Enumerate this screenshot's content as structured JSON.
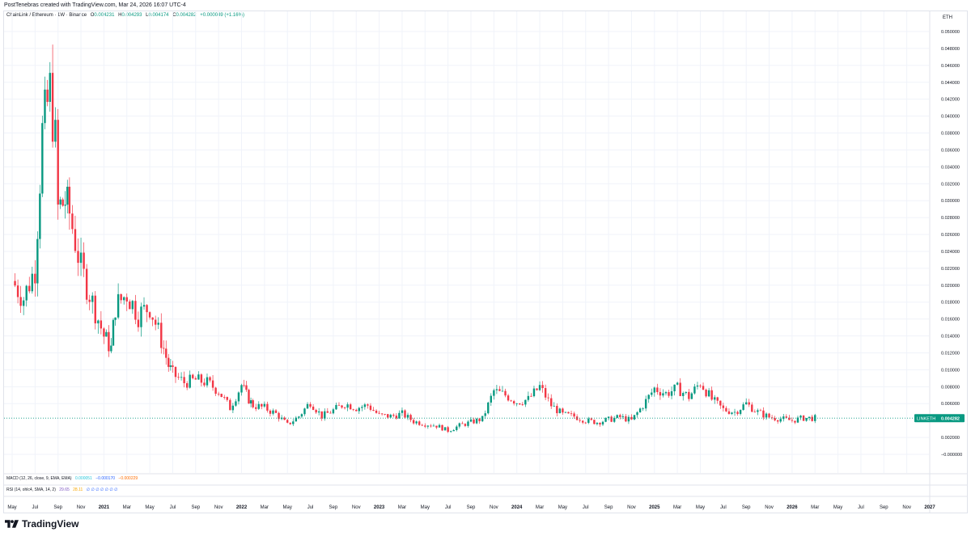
{
  "header": {
    "credit": "PostTenebras created with TradingView.com, Mar 24, 2026 16:07 UTC-4"
  },
  "legend": {
    "symbol": "ChainLink / Ethereum · 1W · Binance",
    "o_label": "O",
    "o": "0.004231",
    "h_label": "H",
    "h": "0.004293",
    "l_label": "L",
    "l": "0.004174",
    "c_label": "C",
    "c": "0.004282",
    "change": "+0.000049 (+1.16%)"
  },
  "price_scale": {
    "unit": "ETH",
    "last_price_tag_label": "LINKETH",
    "last_price_tag_value": "0.004282"
  },
  "macd": {
    "label": "MACD (12, 26, close, 9, EMA, EMA)",
    "v1": "0.000051",
    "v2": "−0.000170",
    "v3": "−0.000229",
    "colors": [
      "#26c6da",
      "#2962ff",
      "#ff6d00"
    ]
  },
  "rsi": {
    "label": "RSI (14, ohlc4, SMA, 14, 2)",
    "v1": "29.65",
    "v2": "28.11",
    "v3": "∅ ∅ ∅ ∅ ∅ ∅ ∅",
    "colors": [
      "#7e57c2",
      "#f7a600",
      "#2962ff"
    ]
  },
  "branding": {
    "name": "TradingView",
    "icon": "tradingview-logo-icon"
  },
  "colors": {
    "up": "#089981",
    "down": "#f23645",
    "last_price": "#089981",
    "grid": "#f0f3fa"
  },
  "chart_data": {
    "type": "candlestick",
    "title": "ChainLink / Ethereum · 1W · Binance",
    "ylabel": "ETH",
    "ylim": [
      -0.004,
      0.052
    ],
    "y_ticks": [
      "0.050000",
      "0.048000",
      "0.046000",
      "0.044000",
      "0.042000",
      "0.040000",
      "0.038000",
      "0.036000",
      "0.034000",
      "0.032000",
      "0.030000",
      "0.028000",
      "0.026000",
      "0.024000",
      "0.022000",
      "0.020000",
      "0.018000",
      "0.016000",
      "0.014000",
      "0.012000",
      "0.010000",
      "0.008000",
      "0.006000",
      "0.002000",
      "−0.000000",
      "−0.004000"
    ],
    "x_ticks": [
      "May",
      "Jul",
      "Sep",
      "Nov",
      "2021",
      "Mar",
      "May",
      "Jul",
      "Sep",
      "Nov",
      "2022",
      "Mar",
      "May",
      "Jul",
      "Sep",
      "Nov",
      "2023",
      "Mar",
      "May",
      "Jul",
      "Sep",
      "Nov",
      "2024",
      "Mar",
      "May",
      "Jul",
      "Sep",
      "Nov",
      "2025",
      "Mar",
      "May",
      "Jul",
      "Sep",
      "Nov",
      "2026",
      "Mar",
      "May",
      "Jul",
      "Sep",
      "Nov",
      "2027"
    ],
    "grid": true,
    "last_close": 0.004282,
    "close_series": [
      {
        "date": "2020-05",
        "close": 0.0205
      },
      {
        "date": "2020-06",
        "close": 0.0185
      },
      {
        "date": "2020-07",
        "close": 0.022
      },
      {
        "date": "2020-07-20",
        "close": 0.038
      },
      {
        "date": "2020-08-10",
        "close": 0.043
      },
      {
        "date": "2020-08-24",
        "close": 0.037
      },
      {
        "date": "2020-09",
        "close": 0.029
      },
      {
        "date": "2020-09-20",
        "close": 0.03
      },
      {
        "date": "2020-10",
        "close": 0.0285
      },
      {
        "date": "2020-11",
        "close": 0.022
      },
      {
        "date": "2020-12",
        "close": 0.018
      },
      {
        "date": "2021-01",
        "close": 0.014
      },
      {
        "date": "2021-01-20",
        "close": 0.0125
      },
      {
        "date": "2021-02",
        "close": 0.0175
      },
      {
        "date": "2021-03",
        "close": 0.019
      },
      {
        "date": "2021-04",
        "close": 0.0165
      },
      {
        "date": "2021-05",
        "close": 0.0175
      },
      {
        "date": "2021-06",
        "close": 0.0135
      },
      {
        "date": "2021-06-20",
        "close": 0.0105
      },
      {
        "date": "2021-07",
        "close": 0.0095
      },
      {
        "date": "2021-08",
        "close": 0.0085
      },
      {
        "date": "2021-09",
        "close": 0.0088
      },
      {
        "date": "2021-10",
        "close": 0.0085
      },
      {
        "date": "2021-11",
        "close": 0.0075
      },
      {
        "date": "2021-12",
        "close": 0.0055
      },
      {
        "date": "2022-01",
        "close": 0.0082
      },
      {
        "date": "2022-01-20",
        "close": 0.0065
      },
      {
        "date": "2022-02",
        "close": 0.0058
      },
      {
        "date": "2022-03",
        "close": 0.0055
      },
      {
        "date": "2022-04",
        "close": 0.0048
      },
      {
        "date": "2022-05",
        "close": 0.0035
      },
      {
        "date": "2022-06",
        "close": 0.0045
      },
      {
        "date": "2022-07",
        "close": 0.0062
      },
      {
        "date": "2022-08",
        "close": 0.0045
      },
      {
        "date": "2022-09",
        "close": 0.0052
      },
      {
        "date": "2022-10",
        "close": 0.006
      },
      {
        "date": "2022-11",
        "close": 0.0055
      },
      {
        "date": "2022-12",
        "close": 0.0058
      },
      {
        "date": "2023-01",
        "close": 0.0046
      },
      {
        "date": "2023-02",
        "close": 0.0045
      },
      {
        "date": "2023-03",
        "close": 0.0048
      },
      {
        "date": "2023-04",
        "close": 0.0039
      },
      {
        "date": "2023-05",
        "close": 0.0036
      },
      {
        "date": "2023-06",
        "close": 0.0034
      },
      {
        "date": "2023-07",
        "close": 0.0028
      },
      {
        "date": "2023-08",
        "close": 0.0034
      },
      {
        "date": "2023-09",
        "close": 0.0038
      },
      {
        "date": "2023-10",
        "close": 0.0042
      },
      {
        "date": "2023-11",
        "close": 0.0075
      },
      {
        "date": "2023-12",
        "close": 0.007
      },
      {
        "date": "2024-01",
        "close": 0.0062
      },
      {
        "date": "2024-02",
        "close": 0.0065
      },
      {
        "date": "2024-03",
        "close": 0.008
      },
      {
        "date": "2024-04",
        "close": 0.0058
      },
      {
        "date": "2024-05",
        "close": 0.0047
      },
      {
        "date": "2024-06",
        "close": 0.0045
      },
      {
        "date": "2024-07",
        "close": 0.004
      },
      {
        "date": "2024-08",
        "close": 0.0038
      },
      {
        "date": "2024-09",
        "close": 0.0041
      },
      {
        "date": "2024-10",
        "close": 0.0044
      },
      {
        "date": "2024-11",
        "close": 0.004
      },
      {
        "date": "2024-12",
        "close": 0.0058
      },
      {
        "date": "2025-01",
        "close": 0.0078
      },
      {
        "date": "2025-02",
        "close": 0.0072
      },
      {
        "date": "2025-03",
        "close": 0.0078
      },
      {
        "date": "2025-04",
        "close": 0.0068
      },
      {
        "date": "2025-05",
        "close": 0.0085
      },
      {
        "date": "2025-06",
        "close": 0.0065
      },
      {
        "date": "2025-07",
        "close": 0.0053
      },
      {
        "date": "2025-08",
        "close": 0.005
      },
      {
        "date": "2025-09",
        "close": 0.006
      },
      {
        "date": "2025-10",
        "close": 0.005
      },
      {
        "date": "2025-11",
        "close": 0.0044
      },
      {
        "date": "2025-12",
        "close": 0.0042
      },
      {
        "date": "2026-01",
        "close": 0.004
      },
      {
        "date": "2026-02",
        "close": 0.0043
      },
      {
        "date": "2026-03",
        "close": 0.004282
      }
    ]
  }
}
